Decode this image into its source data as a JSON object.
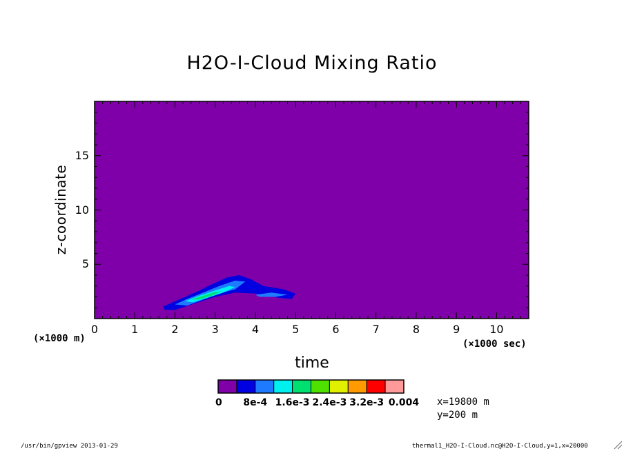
{
  "chart_data": {
    "type": "heatmap",
    "title": "H2O-I-Cloud Mixing Ratio",
    "xlabel": "time",
    "ylabel": "z-coordinate",
    "x_unit": "(×1000 sec)",
    "y_unit": "(×1000 m)",
    "xlim": [
      0,
      10.8
    ],
    "ylim": [
      0,
      20
    ],
    "x_ticks": [
      "0",
      "1",
      "2",
      "3",
      "4",
      "5",
      "6",
      "7",
      "8",
      "9",
      "10"
    ],
    "y_ticks": [
      "5",
      "10",
      "15"
    ],
    "levels": [
      0,
      0.0004,
      0.0008,
      0.0012,
      0.0016,
      0.002,
      0.0024,
      0.0028,
      0.0032,
      0.0036,
      0.004
    ],
    "colorbar_labels": [
      "0",
      "8e-4",
      "1.6e-3",
      "2.4e-3",
      "3.2e-3",
      "0.004"
    ],
    "colors": [
      "#7f00a8",
      "#0000e0",
      "#1e7bff",
      "#00f0f0",
      "#00e070",
      "#50e000",
      "#e0f000",
      "#ff9a00",
      "#ff0000",
      "#ff9a9a"
    ],
    "contour_regions": [
      {
        "level_index": 1,
        "polygon": [
          [
            1.75,
            0.8
          ],
          [
            1.7,
            1.1
          ],
          [
            2.0,
            1.6
          ],
          [
            2.5,
            2.4
          ],
          [
            3.0,
            3.3
          ],
          [
            3.3,
            3.8
          ],
          [
            3.6,
            4.0
          ],
          [
            3.9,
            3.6
          ],
          [
            4.2,
            3.0
          ],
          [
            4.7,
            2.7
          ],
          [
            5.0,
            2.3
          ],
          [
            4.9,
            1.8
          ],
          [
            4.6,
            1.9
          ],
          [
            4.0,
            2.3
          ],
          [
            3.5,
            2.4
          ],
          [
            3.0,
            2.0
          ],
          [
            2.5,
            1.4
          ],
          [
            2.0,
            0.8
          ]
        ]
      },
      {
        "level_index": 2,
        "polygon": [
          [
            2.0,
            1.3
          ],
          [
            2.3,
            1.8
          ],
          [
            2.7,
            2.4
          ],
          [
            3.1,
            3.0
          ],
          [
            3.5,
            3.5
          ],
          [
            3.75,
            3.4
          ],
          [
            3.5,
            2.7
          ],
          [
            3.0,
            2.2
          ],
          [
            2.6,
            1.6
          ],
          [
            2.3,
            1.2
          ]
        ]
      },
      {
        "level_index": 2,
        "polygon": [
          [
            4.0,
            2.2
          ],
          [
            4.4,
            2.4
          ],
          [
            4.8,
            2.2
          ],
          [
            4.5,
            2.0
          ],
          [
            4.1,
            2.0
          ]
        ]
      },
      {
        "level_index": 3,
        "polygon": [
          [
            2.25,
            1.6
          ],
          [
            2.6,
            2.1
          ],
          [
            3.0,
            2.6
          ],
          [
            3.35,
            3.0
          ],
          [
            3.5,
            2.9
          ],
          [
            3.2,
            2.4
          ],
          [
            2.8,
            1.9
          ],
          [
            2.45,
            1.5
          ]
        ]
      },
      {
        "level_index": 4,
        "polygon": [
          [
            2.4,
            1.75
          ],
          [
            2.7,
            2.1
          ],
          [
            3.0,
            2.45
          ],
          [
            3.15,
            2.5
          ],
          [
            2.9,
            2.1
          ],
          [
            2.6,
            1.75
          ]
        ]
      }
    ]
  },
  "info": {
    "x_position": "x=19800  m",
    "y_position": "y=200  m"
  },
  "footer": {
    "left": "/usr/bin/gpview  2013-01-29",
    "right": "thermal1_H2O-I-Cloud.nc@H2O-I-Cloud,y=1,x=20000"
  }
}
